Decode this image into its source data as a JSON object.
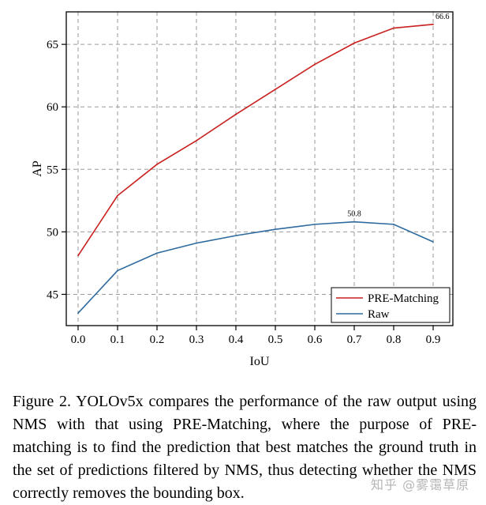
{
  "chart_data": {
    "type": "line",
    "xlabel": "IoU",
    "ylabel": "AP",
    "x": [
      0.0,
      0.1,
      0.2,
      0.3,
      0.4,
      0.5,
      0.6,
      0.7,
      0.8,
      0.9
    ],
    "x_tick_labels": [
      "0.0",
      "0.1",
      "0.2",
      "0.3",
      "0.4",
      "0.5",
      "0.6",
      "0.7",
      "0.8",
      "0.9"
    ],
    "y_ticks": [
      45,
      50,
      55,
      60,
      65
    ],
    "y_tick_labels": [
      "45",
      "50",
      "55",
      "60",
      "65"
    ],
    "xlim": [
      -0.03,
      0.95
    ],
    "ylim": [
      42.5,
      67.6
    ],
    "grid": true,
    "legend_position": "bottom-right",
    "series": [
      {
        "name": "PRE-Matching",
        "color": "#c8201e",
        "values": [
          48.1,
          52.9,
          55.4,
          57.3,
          59.4,
          61.4,
          63.4,
          65.1,
          66.3,
          66.6
        ]
      },
      {
        "name": "Raw",
        "color": "#2e6a9e",
        "values": [
          43.5,
          46.9,
          48.3,
          49.1,
          49.7,
          50.2,
          50.6,
          50.8,
          50.6,
          49.2
        ]
      }
    ],
    "annotations": [
      {
        "text": "66.6",
        "x": 0.9,
        "y": 66.6,
        "series": "PRE-Matching"
      },
      {
        "text": "50.8",
        "x": 0.7,
        "y": 50.8,
        "series": "Raw"
      }
    ]
  },
  "caption": {
    "label": "Figure 2.",
    "text": "YOLOv5x compares the performance of the raw output using NMS with that using PRE-Matching, where the purpose of PRE-matching is to find the prediction that best matches the ground truth in the set of predictions filtered by NMS, thus detecting whether the NMS correctly removes the bounding box."
  },
  "watermark": "知乎 @雾霭草原"
}
